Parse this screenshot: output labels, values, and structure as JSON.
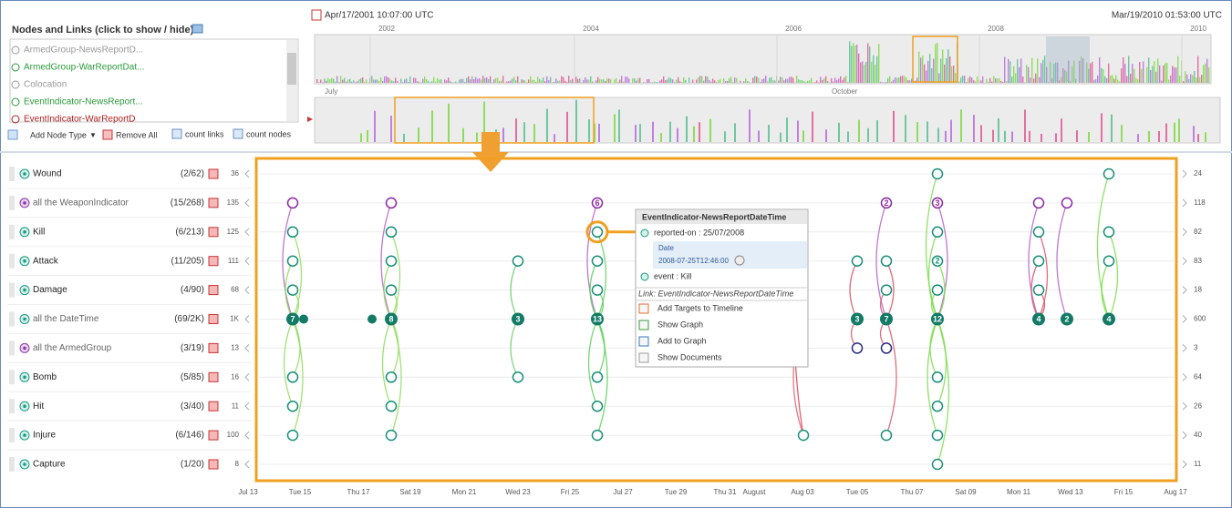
{
  "panel": {
    "title": "Nodes and Links (click to show / hide)",
    "items": [
      "ArmedGroup-NewsReportD...",
      "ArmedGroup-WarReportDat...",
      "Colocation",
      "EventIndicator-NewsReport...",
      "EventIndicator-WarReportD"
    ],
    "add_node_type": "Add Node Type",
    "remove_all": "Remove All",
    "count_links": "count links",
    "count_nodes": "count nodes"
  },
  "timeline": {
    "start": "Apr/17/2001 10:07:00 UTC",
    "end": "Mar/19/2010 01:53:00 UTC",
    "years": [
      "2002",
      "2004",
      "2006",
      "2008",
      "2010"
    ],
    "months": [
      "July",
      "October"
    ]
  },
  "rows": [
    {
      "name": "Wound",
      "count": "(2/62)",
      "left": "36",
      "right": "24"
    },
    {
      "name": "all the WeaponIndicator",
      "count": "(15/268)",
      "left": "135",
      "right": "118"
    },
    {
      "name": "Kill",
      "count": "(6/213)",
      "left": "125",
      "right": "82"
    },
    {
      "name": "Attack",
      "count": "(11/205)",
      "left": "111",
      "right": "83"
    },
    {
      "name": "Damage",
      "count": "(4/90)",
      "left": "68",
      "right": "18"
    },
    {
      "name": "all the DateTime",
      "count": "(69/2K)",
      "left": "1K",
      "right": "600"
    },
    {
      "name": "all the ArmedGroup",
      "count": "(3/19)",
      "left": "13",
      "right": "3"
    },
    {
      "name": "Bomb",
      "count": "(5/85)",
      "left": "16",
      "right": "64"
    },
    {
      "name": "Hit",
      "count": "(3/40)",
      "left": "11",
      "right": "26"
    },
    {
      "name": "Injure",
      "count": "(6/146)",
      "left": "100",
      "right": "40"
    },
    {
      "name": "Capture",
      "count": "(1/20)",
      "left": "8",
      "right": "11"
    }
  ],
  "x_axis": [
    "Jul 13",
    "Tue 15",
    "Thu 17",
    "Sat 19",
    "Mon 21",
    "Wed 23",
    "Fri 25",
    "Jul 27",
    "Tue 29",
    "Thu 31",
    "August",
    "Aug 03",
    "Tue 05",
    "Thu 07",
    "Sat 09",
    "Mon 11",
    "Wed 13",
    "Fri 15",
    "Aug 17"
  ],
  "node_labels": [
    "7",
    "8",
    "3",
    "13",
    "6",
    "3",
    "2",
    "7",
    "3",
    "2",
    "12",
    "4",
    "2",
    "4"
  ],
  "popup": {
    "title": "EventIndicator-NewsReportDateTime",
    "reported_on": "reported-on : 25/07/2008",
    "date_label": "Date",
    "date_value": "2008-07-25T12:46:00",
    "event": "event : Kill",
    "link": "Link: EventIndicator-NewsReportDateTime",
    "menu": [
      "Add Targets to Timeline",
      "Show Graph",
      "Add to Graph",
      "Show Documents"
    ]
  }
}
